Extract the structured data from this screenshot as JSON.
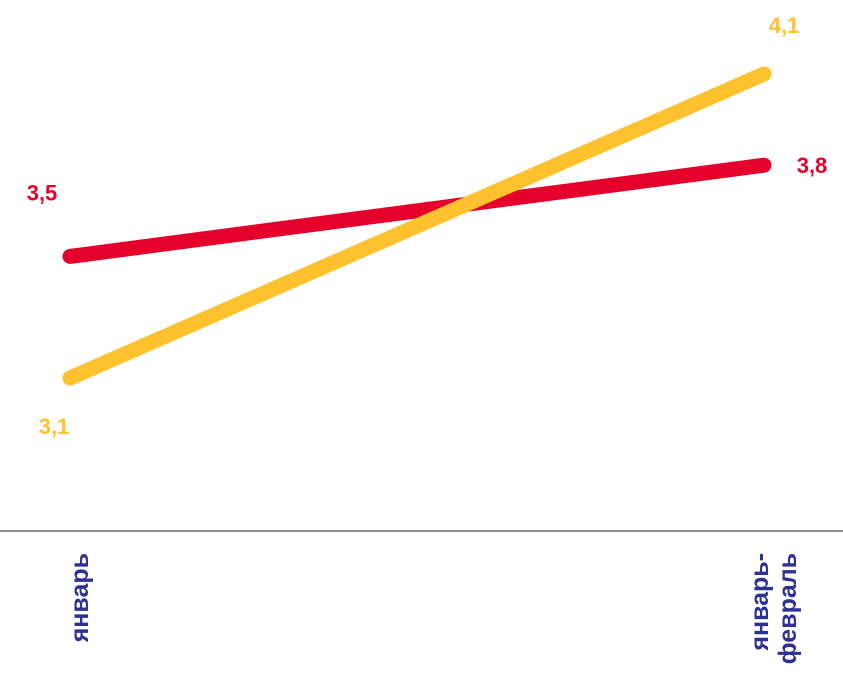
{
  "chart_data": {
    "type": "line",
    "title": "",
    "xlabel": "",
    "ylabel": "",
    "categories": [
      "январь",
      "январь-февраль"
    ],
    "category_lines": [
      [
        "январь"
      ],
      [
        "январь-",
        "февраль"
      ]
    ],
    "ylim": [
      2.6,
      4.35
    ],
    "grid": false,
    "legend": "none",
    "series": [
      {
        "values": [
          3.5,
          3.8
        ],
        "labels": [
          "3,5",
          "3,8"
        ],
        "color": "#E4002B"
      },
      {
        "values": [
          3.1,
          4.1
        ],
        "labels": [
          "3,1",
          "4,1"
        ],
        "color": "#FFC12E"
      }
    ],
    "axis_color": "#666666",
    "category_label_color": "#2E3192"
  }
}
